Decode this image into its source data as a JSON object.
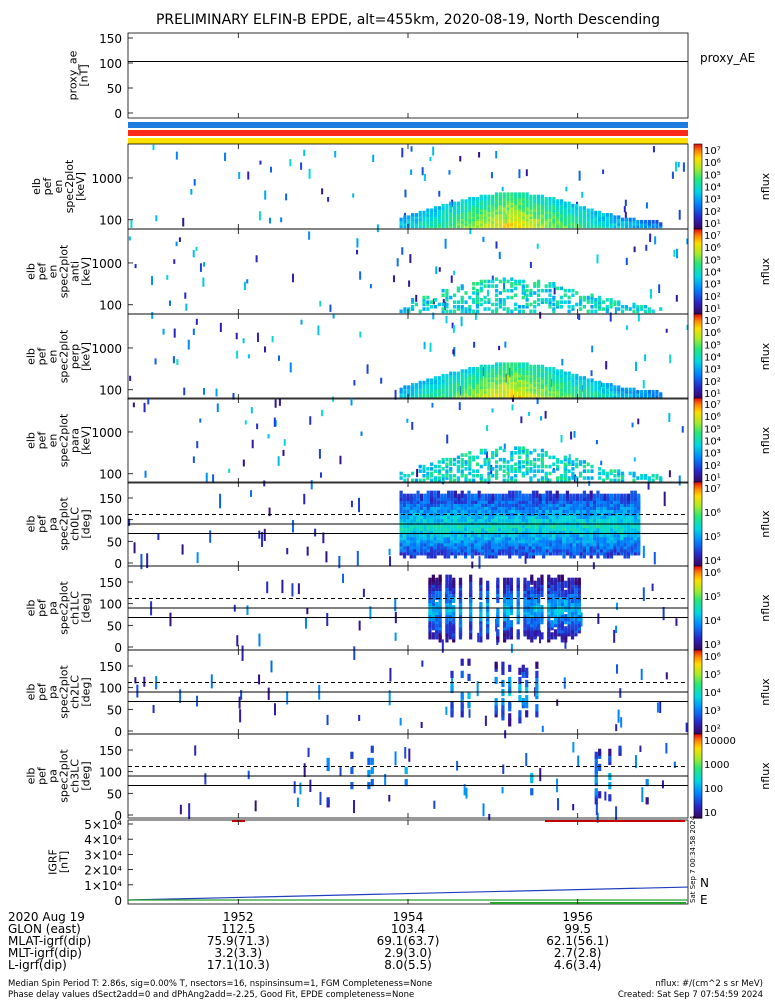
{
  "chart_data": {
    "type": "heatmap",
    "title": "PRELIMINARY ELFIN-B EPDE, alt=455km, 2020-08-19, North Descending",
    "proxy_ae": {
      "ylabel_lines": [
        "proxy_ae",
        "[nT]"
      ],
      "yticks": [
        "150",
        "100",
        "50",
        "0"
      ],
      "ylim": [
        -10,
        160
      ],
      "level": 103,
      "legend": "proxy_AE"
    },
    "color_bars": [
      "#1e7be0",
      "#ff2a1a",
      "#ffe000"
    ],
    "energy_panels": [
      {
        "label_lines": [
          "elb",
          "pef",
          "en",
          "spec2plot",
          "[keV]"
        ],
        "yticks": [
          "1000",
          "100"
        ],
        "cb_ticks": [
          "10⁷",
          "10⁶",
          "10⁵",
          "10⁴",
          "10³",
          "10²",
          "10¹"
        ],
        "cb_label": "nflux",
        "intensity": 1.0
      },
      {
        "label_lines": [
          "elb",
          "pef",
          "en",
          "spec2plot",
          "anti",
          "[keV]"
        ],
        "yticks": [
          "1000",
          "100"
        ],
        "cb_ticks": [
          "10⁷",
          "10⁶",
          "10⁵",
          "10⁴",
          "10³",
          "10²",
          "10¹"
        ],
        "cb_label": "nflux",
        "intensity": 0.25
      },
      {
        "label_lines": [
          "elb",
          "pef",
          "en",
          "spec2plot",
          "perp",
          "[keV]"
        ],
        "yticks": [
          "1000",
          "100"
        ],
        "cb_ticks": [
          "10⁷",
          "10⁶",
          "10⁵",
          "10⁴",
          "10³",
          "10²",
          "10¹"
        ],
        "cb_label": "nflux",
        "intensity": 1.0
      },
      {
        "label_lines": [
          "elb",
          "pef",
          "en",
          "spec2plot",
          "para",
          "[keV]"
        ],
        "yticks": [
          "1000",
          "100"
        ],
        "cb_ticks": [
          "10⁷",
          "10⁶",
          "10⁵",
          "10⁴",
          "10³",
          "10²",
          "10¹"
        ],
        "cb_label": "nflux",
        "intensity": 0.3
      }
    ],
    "pitch_panels": [
      {
        "label_lines": [
          "elb",
          "pef",
          "pa",
          "spec2plot",
          "ch0LC",
          "[deg]"
        ],
        "yticks": [
          "150",
          "100",
          "50",
          "0"
        ],
        "cb_ticks": [
          "10⁷",
          "10⁶",
          "10⁵",
          "10⁴"
        ],
        "cb_label": "nflux",
        "band": [
          1953.9,
          1956.7
        ],
        "density": 1.0
      },
      {
        "label_lines": [
          "elb",
          "pef",
          "pa",
          "spec2plot",
          "ch1LC",
          "[deg]"
        ],
        "yticks": [
          "150",
          "100",
          "50",
          "0"
        ],
        "cb_ticks": [
          "10⁶",
          "10⁵",
          "10⁴",
          "10³"
        ],
        "cb_label": "nflux",
        "band": [
          1954.2,
          1956.0
        ],
        "density": 0.7
      },
      {
        "label_lines": [
          "elb",
          "pef",
          "pa",
          "spec2plot",
          "ch2LC",
          "[deg]"
        ],
        "yticks": [
          "150",
          "100",
          "50",
          "0"
        ],
        "cb_ticks": [
          "10⁶",
          "10⁵",
          "10⁴",
          "10³",
          "10²"
        ],
        "cb_label": "nflux",
        "band": [
          1954.5,
          1955.5
        ],
        "density": 0.25
      },
      {
        "label_lines": [
          "elb",
          "pef",
          "pa",
          "spec2plot",
          "ch3LC",
          "[deg]"
        ],
        "yticks": [
          "150",
          "100",
          "50",
          "0"
        ],
        "cb_ticks": [
          "10000",
          "1000",
          "100",
          "10"
        ],
        "cb_label": "nflux",
        "band": [
          1953.0,
          1957.0
        ],
        "density": 0.1
      }
    ],
    "pitch_lines": {
      "dashed": [
        112
      ],
      "solid": [
        90,
        68
      ]
    },
    "igrf": {
      "ylabel_lines": [
        "IGRF",
        "[nT]"
      ],
      "yticks": [
        "5×10⁴",
        "4×10⁴",
        "3×10⁴",
        "2×10⁴",
        "1×10⁴",
        "0"
      ],
      "ylim": [
        0,
        50000
      ],
      "series": [
        {
          "name": "N",
          "color": "#1f3fbf",
          "x": [
            1950.7,
            1957.3
          ],
          "y": [
            0,
            8500
          ]
        },
        {
          "name": "E",
          "color": "#2ca02c",
          "x": [
            1950.7,
            1957.3
          ],
          "y": [
            0,
            0
          ]
        }
      ]
    },
    "x_ticks": [
      "1952",
      "1954",
      "1956"
    ],
    "xlim": [
      1950.7,
      1957.3
    ],
    "timestamp_vertical": "Sat Sep  7 00:34:58 2024",
    "ephemeris": {
      "labels": [
        "2020 Aug 19",
        "GLON (east)",
        "MLAT-igrf(dip)",
        "MLT-igrf(dip)",
        "L-igrf(dip)"
      ],
      "columns": [
        [
          "1952",
          "112.5",
          "75.9(71.3)",
          "3.2(3.3)",
          "17.1(10.3)"
        ],
        [
          "1954",
          "103.4",
          "69.1(63.7)",
          "2.9(3.0)",
          "8.0(5.5)"
        ],
        [
          "1956",
          "99.5",
          "62.1(56.1)",
          "2.7(2.8)",
          "4.6(3.4)"
        ]
      ]
    },
    "footer_left": [
      "Median Spin Period T: 2.86s, sig=0.00% T, nsectors=16, nspinsinsum=1, FGM Completeness=None",
      "Phase delay values dSect2add=0 and dPhAng2add=-2.25, Good Fit, EPDE completeness=None"
    ],
    "footer_right": [
      "nflux: #/(cm^2 s sr MeV)",
      "Created: Sat Sep  7 07:54:59 2024"
    ]
  }
}
